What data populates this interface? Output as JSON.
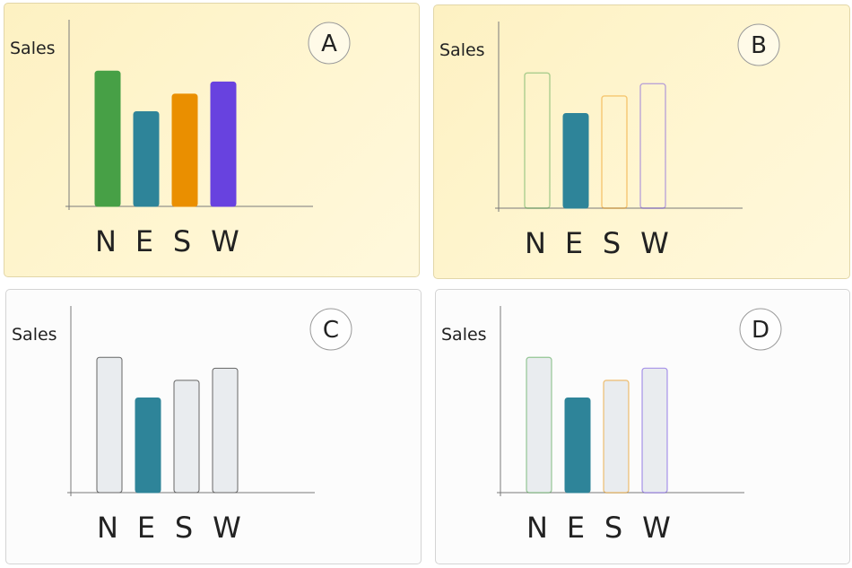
{
  "panels": [
    {
      "letter": "A",
      "style": "filled"
    },
    {
      "letter": "B",
      "style": "highlight-outline"
    },
    {
      "letter": "C",
      "style": "highlight-gray"
    },
    {
      "letter": "D",
      "style": "highlight-gray-colored-outline"
    }
  ],
  "colors": {
    "N": "#47a046",
    "E": "#2e8499",
    "S": "#ea8f00",
    "W": "#6842df",
    "gray_fill": "#e9ecef",
    "gray_stroke": "#666666"
  },
  "chart_data": [
    {
      "type": "bar",
      "ylabel": "Sales",
      "categories": [
        "N",
        "E",
        "S",
        "W"
      ],
      "values": [
        100,
        70,
        83,
        92
      ],
      "highlight": null,
      "ylim": [
        0,
        138
      ]
    },
    {
      "type": "bar",
      "ylabel": "Sales",
      "categories": [
        "N",
        "E",
        "S",
        "W"
      ],
      "values": [
        100,
        70,
        83,
        92
      ],
      "highlight": "E",
      "ylim": [
        0,
        138
      ]
    },
    {
      "type": "bar",
      "ylabel": "Sales",
      "categories": [
        "N",
        "E",
        "S",
        "W"
      ],
      "values": [
        100,
        70,
        83,
        92
      ],
      "highlight": "E",
      "ylim": [
        0,
        138
      ]
    },
    {
      "type": "bar",
      "ylabel": "Sales",
      "categories": [
        "N",
        "E",
        "S",
        "W"
      ],
      "values": [
        100,
        70,
        83,
        92
      ],
      "highlight": "E",
      "ylim": [
        0,
        138
      ]
    }
  ]
}
